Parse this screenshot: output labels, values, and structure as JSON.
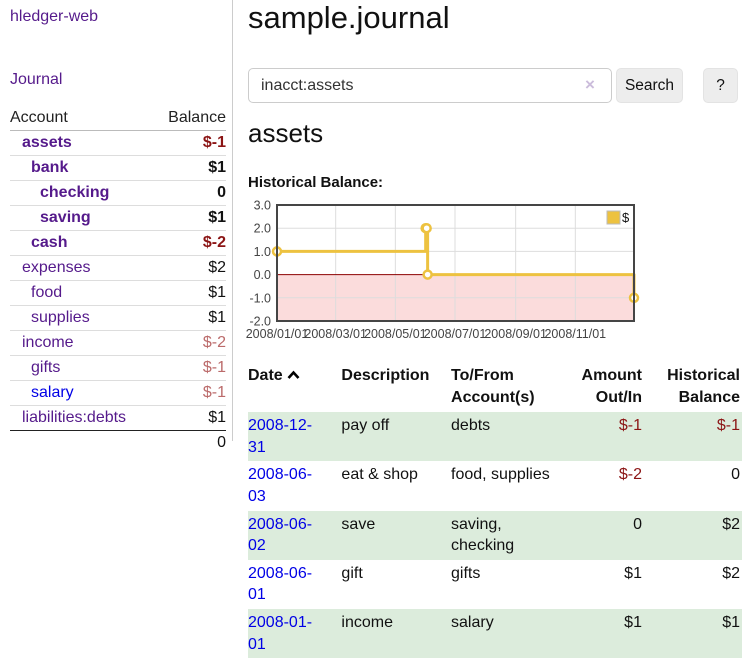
{
  "sidebar": {
    "brand": "hledger-web",
    "journal_link": "Journal",
    "accounts": {
      "header": {
        "account": "Account",
        "balance": "Balance"
      },
      "rows": [
        {
          "name": "assets",
          "depth": 1,
          "bold": true,
          "balance": "$-1",
          "neg": "strong"
        },
        {
          "name": "bank",
          "depth": 2,
          "bold": true,
          "balance": "$1",
          "neg": ""
        },
        {
          "name": "checking",
          "depth": 3,
          "bold": true,
          "balance": "0",
          "neg": ""
        },
        {
          "name": "saving",
          "depth": 3,
          "bold": true,
          "balance": "$1",
          "neg": ""
        },
        {
          "name": "cash",
          "depth": 2,
          "bold": true,
          "balance": "$-2",
          "neg": "strong"
        },
        {
          "name": "expenses",
          "depth": 1,
          "bold": false,
          "balance": "$2",
          "neg": ""
        },
        {
          "name": "food",
          "depth": 2,
          "bold": false,
          "balance": "$1",
          "neg": ""
        },
        {
          "name": "supplies",
          "depth": 2,
          "bold": false,
          "balance": "$1",
          "neg": ""
        },
        {
          "name": "income",
          "depth": 1,
          "bold": false,
          "balance": "$-2",
          "neg": "soft"
        },
        {
          "name": "gifts",
          "depth": 2,
          "bold": false,
          "balance": "$-1",
          "neg": "soft"
        },
        {
          "name": "salary",
          "depth": 2,
          "bold": false,
          "balance": "$-1",
          "neg": "soft",
          "link": "blue"
        },
        {
          "name": "liabilities:debts",
          "depth": 1,
          "bold": false,
          "balance": "$1",
          "neg": ""
        }
      ],
      "total": "0"
    }
  },
  "main": {
    "title": "sample.journal",
    "search": {
      "value": "inacct:assets",
      "clear_icon": "×",
      "button_label": "Search",
      "help_label": "?"
    },
    "account_heading": "assets",
    "chart_heading": "Historical Balance:"
  },
  "register": {
    "headers": {
      "date": "Date",
      "description": "Description",
      "tofrom": "To/From Account(s)",
      "amount": "Amount Out/In",
      "balance": "Historical Balance"
    },
    "rows": [
      {
        "date": "2008-12-31",
        "description": "pay off",
        "accounts": "debts",
        "amount": "$-1",
        "amount_neg": "strong",
        "balance": "$-1",
        "balance_neg": "strong"
      },
      {
        "date": "2008-06-03",
        "description": "eat & shop",
        "accounts": "food, supplies",
        "amount": "$-2",
        "amount_neg": "strong",
        "balance": "0",
        "balance_neg": ""
      },
      {
        "date": "2008-06-02",
        "description": "save",
        "accounts": "saving, checking",
        "amount": "0",
        "amount_neg": "",
        "balance": "$2",
        "balance_neg": ""
      },
      {
        "date": "2008-06-01",
        "description": "gift",
        "accounts": "gifts",
        "amount": "$1",
        "amount_neg": "",
        "balance": "$2",
        "balance_neg": ""
      },
      {
        "date": "2008-01-01",
        "description": "income",
        "accounts": "salary",
        "amount": "$1",
        "amount_neg": "",
        "balance": "$1",
        "balance_neg": ""
      }
    ]
  },
  "chart_data": {
    "type": "line",
    "title": "Historical Balance",
    "step": true,
    "series": [
      {
        "name": "$",
        "color": "#edc240",
        "points": [
          [
            "2008-01-01",
            1
          ],
          [
            "2008-06-01",
            2
          ],
          [
            "2008-06-02",
            2
          ],
          [
            "2008-06-03",
            0
          ],
          [
            "2008-12-31",
            -1
          ]
        ]
      }
    ],
    "xlim": [
      "2008-01-01",
      "2008-12-31"
    ],
    "ylim": [
      -2,
      3
    ],
    "yticks": [
      {
        "v": 3,
        "label": "3.0"
      },
      {
        "v": 2,
        "label": "2.0"
      },
      {
        "v": 1,
        "label": "1.0"
      },
      {
        "v": 0,
        "label": "0.0"
      },
      {
        "v": -1,
        "label": "-1.0"
      },
      {
        "v": -2,
        "label": "-2.0"
      }
    ],
    "xticks": [
      {
        "v": "2008-01-01",
        "label": "2008/01/01"
      },
      {
        "v": "2008-03-01",
        "label": "2008/03/01"
      },
      {
        "v": "2008-05-01",
        "label": "2008/05/01"
      },
      {
        "v": "2008-07-01",
        "label": "2008/07/01"
      },
      {
        "v": "2008-09-01",
        "label": "2008/09/01"
      },
      {
        "v": "2008-11-01",
        "label": "2008/11/01"
      }
    ],
    "legend": {
      "label": "$",
      "position": "top-right"
    },
    "grid": true,
    "marker": "circle"
  },
  "colors": {
    "accent_purple": "#551a8b",
    "link_blue": "#0000e6",
    "negative_strong": "#8b1414",
    "negative_soft": "#bb6a6a",
    "row_green": "#dcecdc",
    "series_yellow": "#edc240",
    "zero_line_red": "#8b0000",
    "negative_region_pink": "#fbdcdc",
    "grid_gray": "#dddddd",
    "plot_border": "#454545"
  }
}
